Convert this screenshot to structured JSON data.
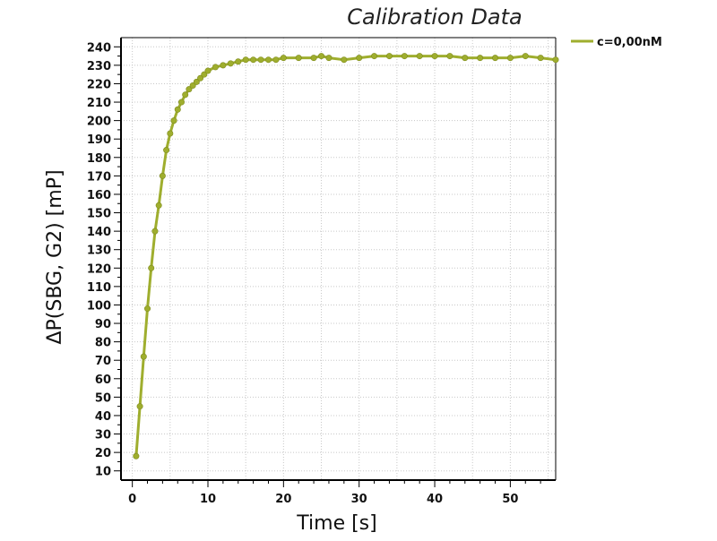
{
  "chart_data": {
    "type": "line",
    "title": "Calibration Data",
    "xlabel": "Time [s]",
    "ylabel": "ΔP(SBG, G2) [mP]",
    "xlim": [
      -1.5,
      56
    ],
    "ylim": [
      5,
      245
    ],
    "x_ticks": [
      0,
      10,
      20,
      30,
      40,
      50
    ],
    "y_ticks": [
      10,
      20,
      30,
      40,
      50,
      60,
      70,
      80,
      90,
      100,
      110,
      120,
      130,
      140,
      150,
      160,
      170,
      180,
      190,
      200,
      210,
      220,
      230,
      240
    ],
    "grid": true,
    "legend_position": "top-right, outside plot",
    "series": [
      {
        "name": "c=0,00nM",
        "color": "#9fae2e",
        "x": [
          0.5,
          1.0,
          1.5,
          2.0,
          2.5,
          3.0,
          3.5,
          4.0,
          4.5,
          5.0,
          5.5,
          6.0,
          6.5,
          7.0,
          7.5,
          8.0,
          8.5,
          9.0,
          9.5,
          10.0,
          11.0,
          12.0,
          13.0,
          14.0,
          15.0,
          16.0,
          17.0,
          18.0,
          19.0,
          20.0,
          22.0,
          24.0,
          25.0,
          26.0,
          28.0,
          30.0,
          32.0,
          34.0,
          36.0,
          38.0,
          40.0,
          42.0,
          44.0,
          46.0,
          48.0,
          50.0,
          52.0,
          54.0,
          56.0
        ],
        "values": [
          18,
          45,
          72,
          98,
          120,
          140,
          154,
          170,
          184,
          193,
          200,
          206,
          210,
          214,
          217,
          219,
          221,
          223,
          225,
          227,
          229,
          230,
          231,
          232,
          233,
          233,
          233,
          233,
          233,
          234,
          234,
          234,
          235,
          234,
          233,
          234,
          235,
          235,
          235,
          235,
          235,
          235,
          234,
          234,
          234,
          234,
          235,
          234,
          233
        ]
      }
    ]
  }
}
